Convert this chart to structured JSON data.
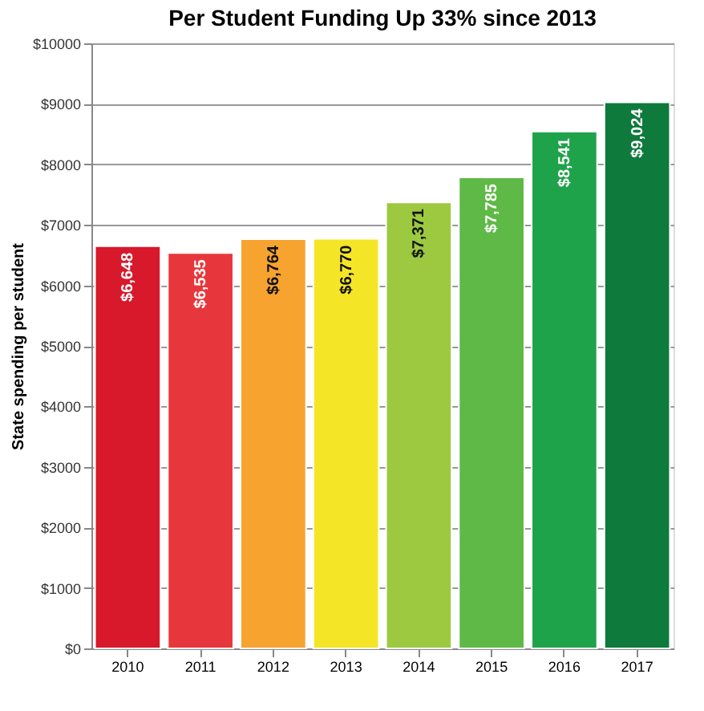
{
  "chart_data": {
    "type": "bar",
    "title": "Per Student Funding Up 33% since 2013",
    "ylabel": "State spending per student",
    "categories": [
      "2010",
      "2011",
      "2012",
      "2013",
      "2014",
      "2015",
      "2016",
      "2017"
    ],
    "values": [
      6648,
      6535,
      6764,
      6770,
      7371,
      7785,
      8541,
      9024
    ],
    "colors": [
      "#d7192b",
      "#e8373c",
      "#f6a330",
      "#f4e626",
      "#9cc940",
      "#5fb946",
      "#1fa34a",
      "#0e7a3c"
    ],
    "value_labels": [
      "$6,648",
      "$6,535",
      "$6,764",
      "$6,770",
      "$7,371",
      "$7,785",
      "$8,541",
      "$9,024"
    ],
    "ylim": [
      0,
      10000
    ],
    "yticks": [
      {
        "value": 0,
        "label": "$0"
      },
      {
        "value": 1000,
        "label": "$1000"
      },
      {
        "value": 2000,
        "label": "$2000"
      },
      {
        "value": 3000,
        "label": "$3000"
      },
      {
        "value": 4000,
        "label": "$4000"
      },
      {
        "value": 5000,
        "label": "$5000"
      },
      {
        "value": 6000,
        "label": "$6000"
      },
      {
        "value": 7000,
        "label": "$7000"
      },
      {
        "value": 8000,
        "label": "$8000"
      },
      {
        "value": 9000,
        "label": "$9000"
      },
      {
        "value": 10000,
        "label": "$10000"
      }
    ],
    "grid": "y"
  }
}
